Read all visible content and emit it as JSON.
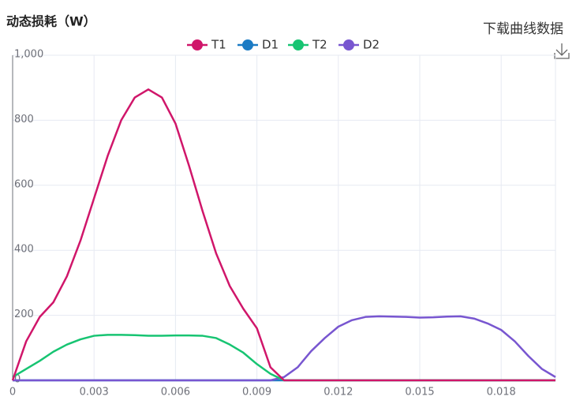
{
  "chart_data": {
    "type": "line",
    "title": "动态损耗（W）",
    "download_label": "下载曲线数据",
    "x": [
      0,
      0.0005,
      0.001,
      0.0015,
      0.002,
      0.0025,
      0.003,
      0.0035,
      0.004,
      0.0045,
      0.005,
      0.0055,
      0.006,
      0.0065,
      0.007,
      0.0075,
      0.008,
      0.0085,
      0.009,
      0.0095,
      0.01,
      0.0105,
      0.011,
      0.0115,
      0.012,
      0.0125,
      0.013,
      0.0135,
      0.014,
      0.0145,
      0.015,
      0.0155,
      0.016,
      0.0165,
      0.017,
      0.0175,
      0.018,
      0.0185,
      0.019,
      0.0195,
      0.02
    ],
    "series": [
      {
        "name": "T1",
        "color": "#d0166a",
        "values": [
          0,
          120,
          195,
          240,
          320,
          430,
          560,
          690,
          800,
          870,
          895,
          870,
          790,
          660,
          520,
          390,
          290,
          220,
          160,
          40,
          0,
          0,
          0,
          0,
          0,
          0,
          0,
          0,
          0,
          0,
          0,
          0,
          0,
          0,
          0,
          0,
          0,
          0,
          0,
          0,
          0
        ]
      },
      {
        "name": "D1",
        "color": "#1b7bc4",
        "values": [
          0,
          0,
          0,
          0,
          0,
          0,
          0,
          0,
          0,
          0,
          0,
          0,
          0,
          0,
          0,
          0,
          0,
          0,
          0,
          0,
          0,
          0,
          0,
          0,
          0,
          0,
          0,
          0,
          0,
          0,
          0,
          0,
          0,
          0,
          0,
          0,
          0,
          0,
          0,
          0,
          0
        ]
      },
      {
        "name": "T2",
        "color": "#17c472",
        "values": [
          10,
          35,
          60,
          88,
          110,
          126,
          137,
          140,
          140,
          139,
          137,
          137,
          138,
          138,
          137,
          130,
          110,
          85,
          50,
          20,
          0,
          0,
          0,
          0,
          0,
          0,
          0,
          0,
          0,
          0,
          0,
          0,
          0,
          0,
          0,
          0,
          0,
          0,
          0,
          0,
          0
        ]
      },
      {
        "name": "D2",
        "color": "#7856d0",
        "values": [
          0,
          0,
          0,
          0,
          0,
          0,
          0,
          0,
          0,
          0,
          0,
          0,
          0,
          0,
          0,
          0,
          0,
          0,
          0,
          0,
          10,
          40,
          90,
          130,
          165,
          185,
          195,
          197,
          196,
          195,
          193,
          194,
          196,
          197,
          190,
          175,
          155,
          120,
          75,
          35,
          10
        ]
      }
    ],
    "xlim": [
      0,
      0.02
    ],
    "xticks": [
      0,
      0.003,
      0.006,
      0.009,
      0.012,
      0.015,
      0.018
    ],
    "ylim": [
      0,
      1000
    ],
    "yticks": [
      0,
      200,
      400,
      600,
      800,
      {
        "value": 1000,
        "label": "1,000"
      }
    ],
    "grid": true,
    "legend": "top"
  }
}
